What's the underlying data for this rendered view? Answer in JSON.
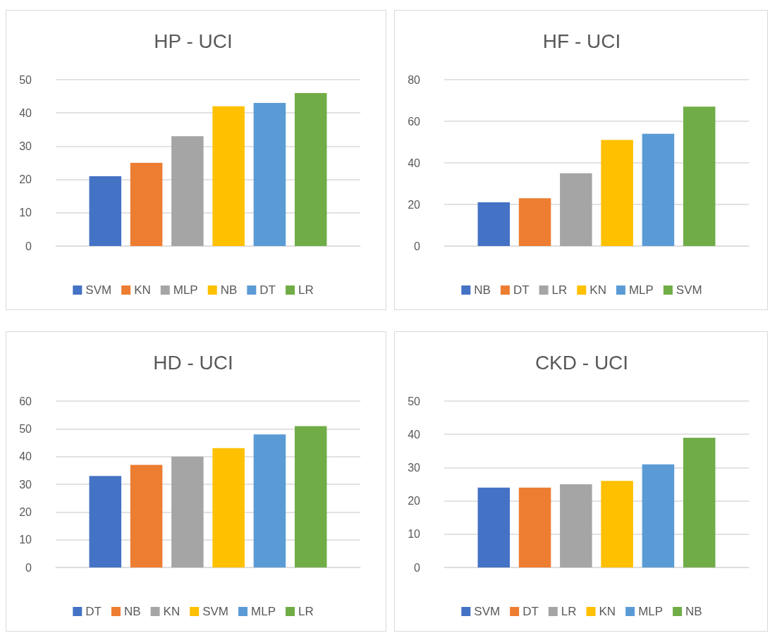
{
  "chart_data": [
    {
      "type": "bar",
      "title": "HP - UCI",
      "categories": [
        null
      ],
      "series": [
        {
          "name": "SVM",
          "color": "#4472c4",
          "values": [
            21
          ]
        },
        {
          "name": "KN",
          "color": "#ed7d31",
          "values": [
            25
          ]
        },
        {
          "name": "MLP",
          "color": "#a5a5a5",
          "values": [
            33
          ]
        },
        {
          "name": "NB",
          "color": "#ffc000",
          "values": [
            42
          ]
        },
        {
          "name": "DT",
          "color": "#5b9bd5",
          "values": [
            43
          ]
        },
        {
          "name": "LR",
          "color": "#70ad47",
          "values": [
            46
          ]
        }
      ],
      "ylim": [
        0,
        50
      ],
      "yticks": [
        0,
        10,
        20,
        30,
        40,
        50
      ],
      "grid": "y",
      "legend": "bottom"
    },
    {
      "type": "bar",
      "title": "HF - UCI",
      "categories": [
        null
      ],
      "series": [
        {
          "name": "NB",
          "color": "#4472c4",
          "values": [
            21
          ]
        },
        {
          "name": "DT",
          "color": "#ed7d31",
          "values": [
            23
          ]
        },
        {
          "name": "LR",
          "color": "#a5a5a5",
          "values": [
            35
          ]
        },
        {
          "name": "KN",
          "color": "#ffc000",
          "values": [
            51
          ]
        },
        {
          "name": "MLP",
          "color": "#5b9bd5",
          "values": [
            54
          ]
        },
        {
          "name": "SVM",
          "color": "#70ad47",
          "values": [
            67
          ]
        }
      ],
      "ylim": [
        0,
        80
      ],
      "yticks": [
        0,
        20,
        40,
        60,
        80
      ],
      "grid": "y",
      "legend": "bottom"
    },
    {
      "type": "bar",
      "title": "HD - UCI",
      "categories": [
        null
      ],
      "series": [
        {
          "name": "DT",
          "color": "#4472c4",
          "values": [
            33
          ]
        },
        {
          "name": "NB",
          "color": "#ed7d31",
          "values": [
            37
          ]
        },
        {
          "name": "KN",
          "color": "#a5a5a5",
          "values": [
            40
          ]
        },
        {
          "name": "SVM",
          "color": "#ffc000",
          "values": [
            43
          ]
        },
        {
          "name": "MLP",
          "color": "#5b9bd5",
          "values": [
            48
          ]
        },
        {
          "name": "LR",
          "color": "#70ad47",
          "values": [
            51
          ]
        }
      ],
      "ylim": [
        0,
        60
      ],
      "yticks": [
        0,
        10,
        20,
        30,
        40,
        50,
        60
      ],
      "grid": "y",
      "legend": "bottom"
    },
    {
      "type": "bar",
      "title": "CKD - UCI",
      "categories": [
        null
      ],
      "series": [
        {
          "name": "SVM",
          "color": "#4472c4",
          "values": [
            24
          ]
        },
        {
          "name": "DT",
          "color": "#ed7d31",
          "values": [
            24
          ]
        },
        {
          "name": "LR",
          "color": "#a5a5a5",
          "values": [
            25
          ]
        },
        {
          "name": "KN",
          "color": "#ffc000",
          "values": [
            26
          ]
        },
        {
          "name": "MLP",
          "color": "#5b9bd5",
          "values": [
            31
          ]
        },
        {
          "name": "NB",
          "color": "#70ad47",
          "values": [
            39
          ]
        }
      ],
      "ylim": [
        0,
        50
      ],
      "yticks": [
        0,
        10,
        20,
        30,
        40,
        50
      ],
      "grid": "y",
      "legend": "bottom"
    }
  ]
}
